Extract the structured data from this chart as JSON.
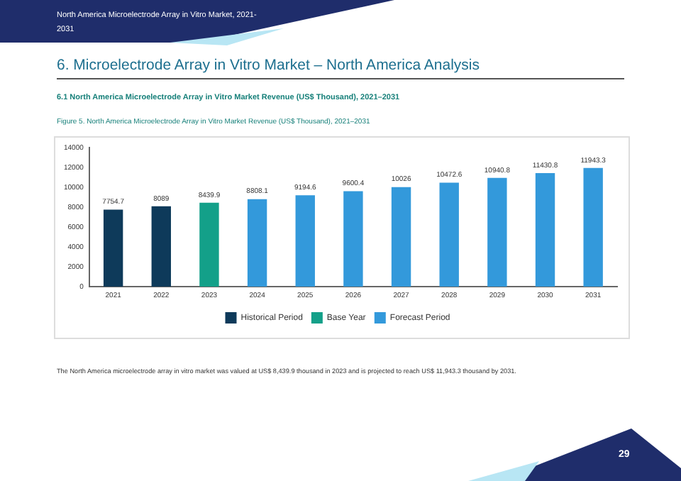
{
  "chart_data": {
    "type": "bar",
    "title": "Figure 5.   North America Microelectrode Array in Vitro Market Revenue (US$ Thousand), 2021–2031",
    "categories": [
      "2021",
      "2022",
      "2023",
      "2024",
      "2025",
      "2026",
      "2027",
      "2028",
      "2029",
      "2030",
      "2031"
    ],
    "series": [
      {
        "name": "Historical Period",
        "color": "#0e3a5a",
        "values": [
          7754.7,
          8089,
          null,
          null,
          null,
          null,
          null,
          null,
          null,
          null,
          null
        ]
      },
      {
        "name": "Base Year",
        "color": "#13a089",
        "values": [
          null,
          null,
          8439.9,
          null,
          null,
          null,
          null,
          null,
          null,
          null,
          null
        ]
      },
      {
        "name": "Forecast Period",
        "color": "#3399db",
        "values": [
          null,
          null,
          null,
          8808.1,
          9194.6,
          9600.4,
          10026,
          10472.6,
          10940.8,
          11430.8,
          11943.3
        ]
      }
    ],
    "ylim": [
      0,
      14000
    ],
    "yticks": [
      0,
      2000,
      4000,
      6000,
      8000,
      10000,
      12000,
      14000
    ],
    "grid": false,
    "legend": "bottom",
    "data_labels": true,
    "annotations": [
      "North America Microelectrode Array in Vitro Market, 2021-2031",
      "6.   Microelectrode Array in Vitro Market – North America Analysis",
      "6.1   North America Microelectrode Array in Vitro Market Revenue (US$ Thousand), 2021–2031",
      "The North America microelectrode array in vitro market was valued at US$ 8,439.9 thousand in 2023 and is projected to reach US$ 11,943.3 thousand by 2031.",
      "29"
    ]
  }
}
